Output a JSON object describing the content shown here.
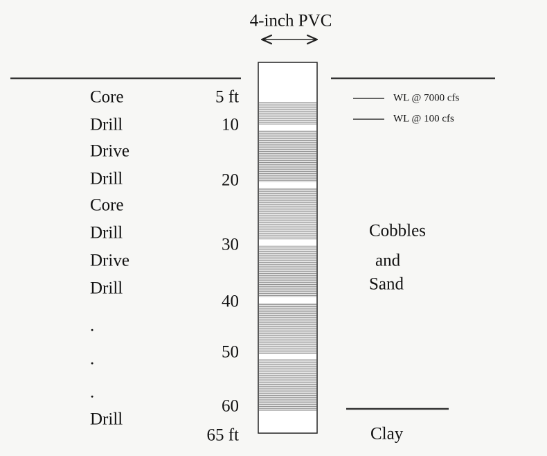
{
  "title": "4-inch PVC",
  "legend": [
    "WL @ 7000 cfs",
    "WL @  100 cfs"
  ],
  "methods": [
    "Core",
    "Drill",
    "Drive",
    "Drill",
    "Core",
    "Drill",
    "Drive",
    "Drill",
    ".",
    ".",
    ".",
    "Drill"
  ],
  "depths": [
    "5 ft",
    "10",
    "20",
    "30",
    "40",
    "50",
    "60",
    "65 ft"
  ],
  "strata": [
    "Cobbles",
    "and",
    "Sand",
    "Clay"
  ]
}
